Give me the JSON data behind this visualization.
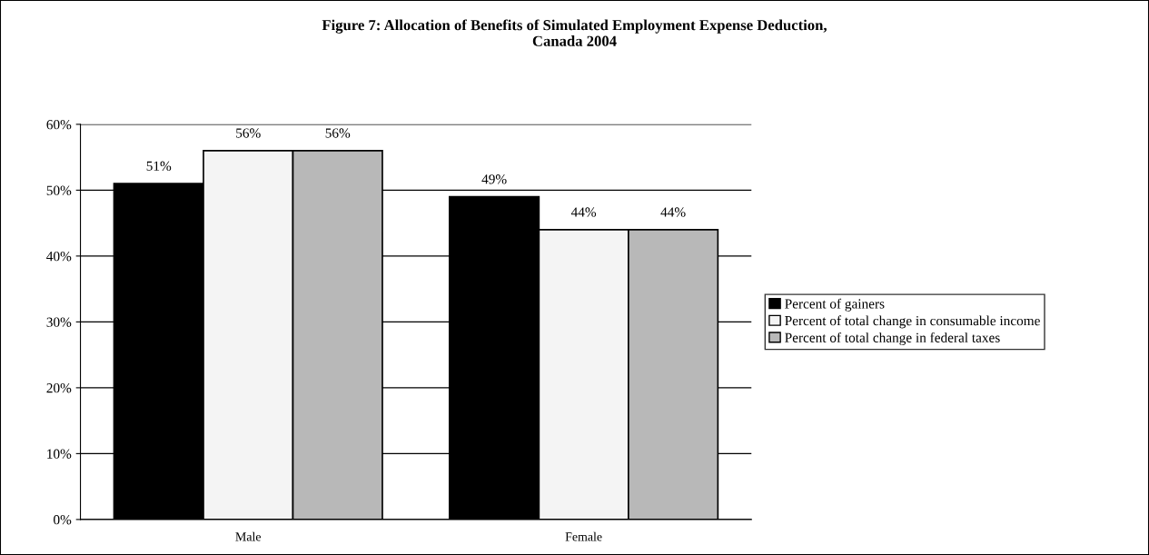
{
  "chart_data": {
    "type": "bar",
    "title": "Figure 7: Allocation of Benefits of Simulated Employment Expense Deduction,\nCanada 2004",
    "categories": [
      "Male",
      "Female"
    ],
    "series": [
      {
        "name": "Percent of gainers",
        "color": "#000000",
        "values": [
          51,
          49
        ],
        "value_labels": [
          "51%",
          "49%"
        ]
      },
      {
        "name": "Percent of total change in consumable income",
        "color": "#f4f4f4",
        "values": [
          56,
          44
        ],
        "value_labels": [
          "56%",
          "44%"
        ]
      },
      {
        "name": "Percent of total change in federal taxes",
        "color": "#b8b8b8",
        "values": [
          56,
          44
        ],
        "value_labels": [
          "56%",
          "44%"
        ]
      }
    ],
    "ylim": [
      0,
      60
    ],
    "yticks": [
      {
        "value": 0,
        "label": "0%"
      },
      {
        "value": 10,
        "label": "10%"
      },
      {
        "value": 20,
        "label": "20%"
      },
      {
        "value": 30,
        "label": "30%"
      },
      {
        "value": 40,
        "label": "40%"
      },
      {
        "value": 50,
        "label": "50%"
      },
      {
        "value": 60,
        "label": "60%"
      }
    ],
    "grid": "y",
    "legend": "right"
  }
}
